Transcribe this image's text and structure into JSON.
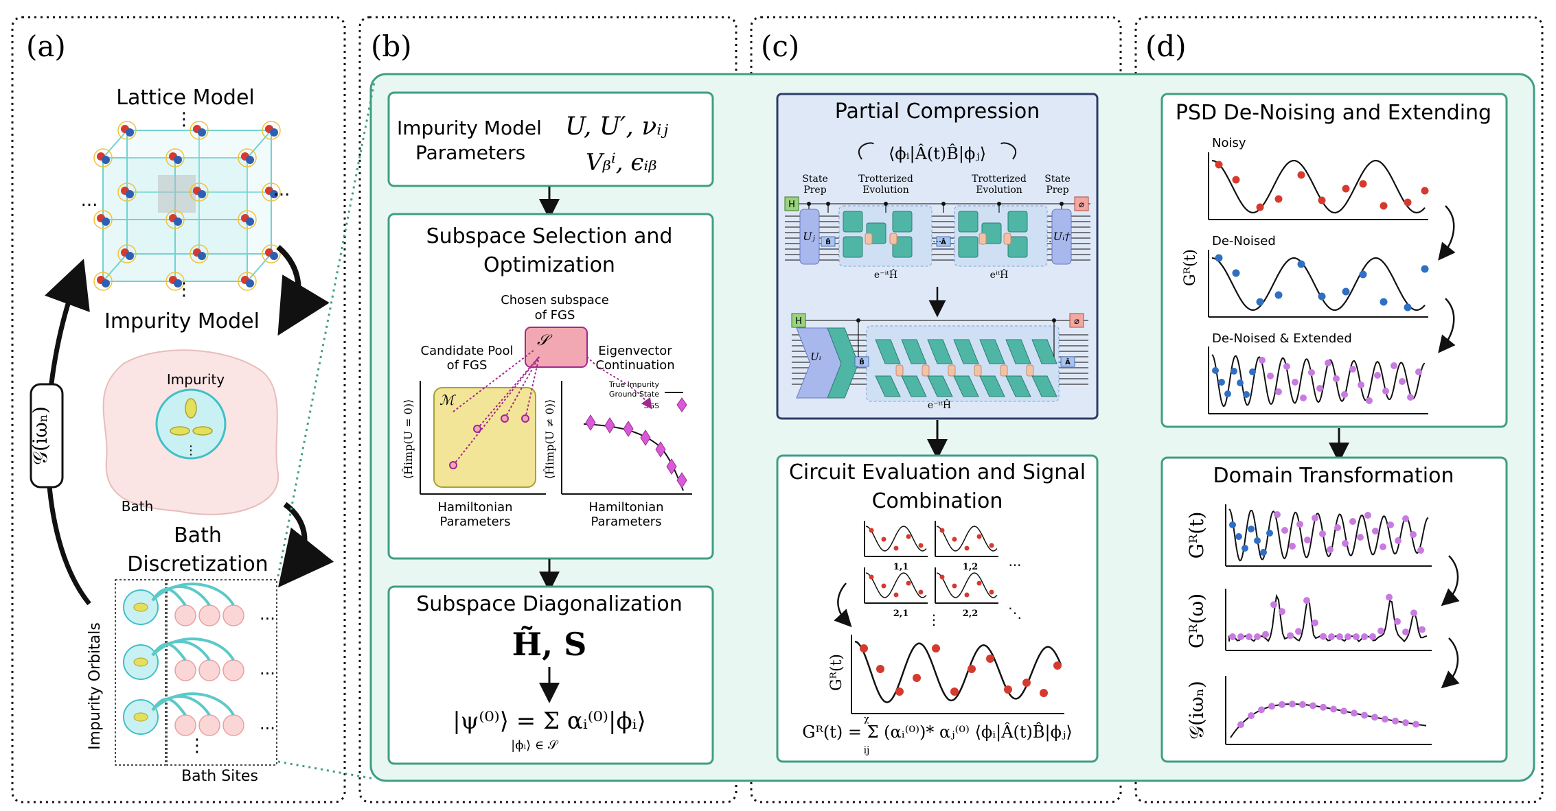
{
  "panels": {
    "a": {
      "label": "(a)",
      "lattice_title": "Lattice Model",
      "impurity_title": "Impurity Model",
      "impurity_word": "Impurity",
      "bath_word": "Bath",
      "bath_disc_line1": "Bath",
      "bath_disc_line2": "Discretization",
      "green_fn": "𝒢(iωₙ)",
      "impurity_orbitals": "Impurity Orbitals",
      "bath_sites": "Bath Sites",
      "dots_h": "...",
      "dots_v": "⋮"
    },
    "b": {
      "label": "(b)",
      "params_title_1": "Impurity Model",
      "params_title_2": "Parameters",
      "params_formula_1": "U, U′, νᵢⱼ",
      "params_formula_2": "Vᵦⁱ, ϵᵢᵦ",
      "subspace_title_1": "Subspace Selection and",
      "subspace_title_2": "Optimization",
      "chosen_1": "Chosen subspace",
      "chosen_2": "of FGS",
      "subspace_symbol": "𝒮",
      "candidate_1": "Candidate Pool",
      "candidate_2": "of FGS",
      "manifold_symbol": "ℳ",
      "eigen_1": "Eigenvector",
      "eigen_2": "Continuation",
      "legend_true_1": "True Impurity",
      "legend_true_2": "Ground State",
      "legend_sgs": "SGS",
      "ylabel_left": "⟨Ĥimp(U = 0)⟩",
      "ylabel_right": "⟨Ĥimp(U ≠ 0)⟩",
      "xlabel_left_1": "Hamiltonian",
      "xlabel_left_2": "Parameters",
      "xlabel_right_1": "Hamiltonian",
      "xlabel_right_2": "Parameters",
      "diag_title": "Subspace Diagonalization",
      "diag_HS": "H̃, S",
      "diag_psi": "|ψ⁽⁰⁾⟩ = Σ αᵢ⁽⁰⁾|ϕᵢ⟩",
      "diag_sum_sub": "|ϕᵢ⟩ ∈ 𝒮"
    },
    "c": {
      "label": "(c)",
      "partial_title": "Partial Compression",
      "matrix_element": "⟨ϕᵢ|Â(t)B̂|ϕⱼ⟩",
      "state_prep": "State",
      "state_prep_2": "Prep",
      "trotter_1": "Trotterized",
      "trotter_2": "Evolution",
      "gate_H": "H",
      "gate_Uj": "Uⱼ",
      "gate_Ui_dag": "Uᵢ†",
      "gate_Ui": "Uᵢ",
      "gate_B": "B̂",
      "gate_A": "Â",
      "evo_minus": "e⁻ⁱᵗĤ",
      "evo_plus": "eⁱᵗĤ",
      "circuit_eval_1": "Circuit Evaluation and Signal",
      "circuit_eval_2": "Combination",
      "idx_11": "1,1",
      "idx_12": "1,2",
      "idx_21": "2,1",
      "idx_22": "2,2",
      "gr_label": "Gᴿ(t)",
      "gr_formula": "Gᴿ(t) = Σ (αᵢ⁽⁰⁾)* αⱼ⁽⁰⁾ ⟨ϕᵢ|Â(t)B̂|ϕⱼ⟩",
      "sum_top": "χ",
      "sum_bottom": "ij"
    },
    "d": {
      "label": "(d)",
      "psd_title": "PSD De-Noising and Extending",
      "noisy": "Noisy",
      "denoised": "De-Noised",
      "denoised_ext": "De-Noised & Extended",
      "gr_t": "Gᴿ(t)",
      "domain_title": "Domain Transformation",
      "gr_t2": "Gᴿ(t)",
      "gr_w": "Gᴿ(ω)",
      "g_iw": "𝒢(iωₙ)"
    }
  },
  "colors": {
    "teal_border": "#3f9e83",
    "teal_fill": "#e9f7f3",
    "navy_border": "#2e3c6b",
    "blue_fill": "#dfe8f7",
    "red_point": "#d63a2f",
    "blue_point": "#2f6fc4",
    "violet_point": "#c77be0",
    "pink_box": "#f2a8b2",
    "yellow_box": "#f3e597",
    "cyan_line": "#5cc9c9"
  }
}
